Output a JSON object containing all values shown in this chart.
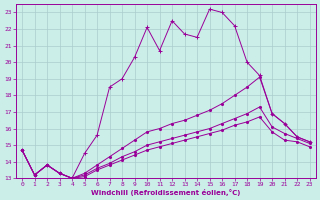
{
  "title": "",
  "xlabel": "Windchill (Refroidissement éolien,°C)",
  "background_color": "#cceee8",
  "plot_bg_color": "#cceee8",
  "line_color": "#990099",
  "grid_color": "#aacccc",
  "xlim": [
    -0.5,
    23.5
  ],
  "ylim": [
    13,
    23.5
  ],
  "xticks": [
    0,
    1,
    2,
    3,
    4,
    5,
    6,
    7,
    8,
    9,
    10,
    11,
    12,
    13,
    14,
    15,
    16,
    17,
    18,
    19,
    20,
    21,
    22,
    23
  ],
  "yticks": [
    13,
    14,
    15,
    16,
    17,
    18,
    19,
    20,
    21,
    22,
    23
  ],
  "line1_x": [
    0,
    1,
    2,
    3,
    4,
    5,
    6,
    7,
    8,
    9,
    10,
    11,
    12,
    13,
    14,
    15,
    16,
    17,
    18,
    19,
    20,
    21,
    22,
    23
  ],
  "line1_y": [
    14.7,
    13.2,
    13.8,
    13.3,
    13.0,
    14.5,
    15.6,
    18.5,
    19.0,
    20.3,
    22.1,
    20.7,
    22.5,
    21.7,
    21.5,
    23.2,
    23.0,
    22.2,
    20.0,
    19.2,
    16.9,
    16.3,
    15.5,
    15.2
  ],
  "line2_x": [
    0,
    1,
    2,
    3,
    4,
    5,
    6,
    7,
    8,
    9,
    10,
    11,
    12,
    13,
    14,
    15,
    16,
    17,
    18,
    19,
    20,
    21,
    22,
    23
  ],
  "line2_y": [
    14.7,
    13.2,
    13.8,
    13.3,
    13.0,
    13.3,
    13.8,
    14.3,
    14.8,
    15.3,
    15.8,
    16.0,
    16.3,
    16.5,
    16.8,
    17.1,
    17.5,
    18.0,
    18.5,
    19.1,
    16.9,
    16.3,
    15.5,
    15.2
  ],
  "line3_x": [
    0,
    1,
    2,
    3,
    4,
    5,
    6,
    7,
    8,
    9,
    10,
    11,
    12,
    13,
    14,
    15,
    16,
    17,
    18,
    19,
    20,
    21,
    22,
    23
  ],
  "line3_y": [
    14.7,
    13.2,
    13.8,
    13.3,
    13.0,
    13.2,
    13.6,
    13.9,
    14.3,
    14.6,
    15.0,
    15.2,
    15.4,
    15.6,
    15.8,
    16.0,
    16.3,
    16.6,
    16.9,
    17.3,
    16.1,
    15.7,
    15.4,
    15.1
  ],
  "line4_x": [
    0,
    1,
    2,
    3,
    4,
    5,
    6,
    7,
    8,
    9,
    10,
    11,
    12,
    13,
    14,
    15,
    16,
    17,
    18,
    19,
    20,
    21,
    22,
    23
  ],
  "line4_y": [
    14.7,
    13.2,
    13.8,
    13.3,
    13.0,
    13.1,
    13.5,
    13.8,
    14.1,
    14.4,
    14.7,
    14.9,
    15.1,
    15.3,
    15.5,
    15.7,
    15.9,
    16.2,
    16.4,
    16.7,
    15.8,
    15.3,
    15.2,
    14.9
  ]
}
